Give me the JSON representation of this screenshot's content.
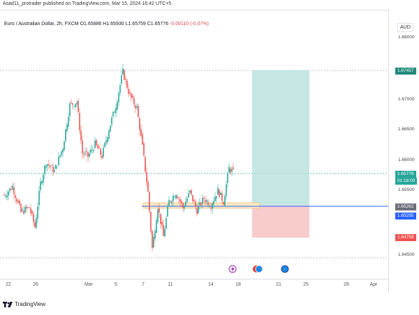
{
  "header": {
    "published": "Asad11_protrader published on TradingView.com, Mar 15, 2024 16:42 UTC+5"
  },
  "symbol": {
    "name": "Euro / Australian Dollar, 2h, FXCM",
    "open": "O1.65886",
    "high": "H1.65930",
    "low": "L1.65759",
    "close": "C1.65776",
    "change": "-0.00110 (-0.07%)"
  },
  "axis": {
    "currency": "AUD",
    "y_labels": [
      "1.68000",
      "1.67000",
      "1.66500",
      "1.66000",
      "1.65500",
      "1.64500"
    ],
    "x_labels": [
      "22",
      "26",
      "Mar",
      "5",
      "7",
      "11",
      "14",
      "18",
      "21",
      "25",
      "28",
      "Apr"
    ]
  },
  "tags": {
    "target": "1.67457",
    "price": "1.65776",
    "countdown": "01:18:00",
    "entry": "1.65262",
    "line": "1.65255",
    "stop": "1.64758"
  },
  "colors": {
    "up": "#26a69a",
    "down": "#ef5350",
    "target_zone": "#b2dfdb",
    "stop_zone": "#f8c7c6",
    "line": "#2962ff"
  },
  "footer": {
    "brand": "TradingView"
  }
}
